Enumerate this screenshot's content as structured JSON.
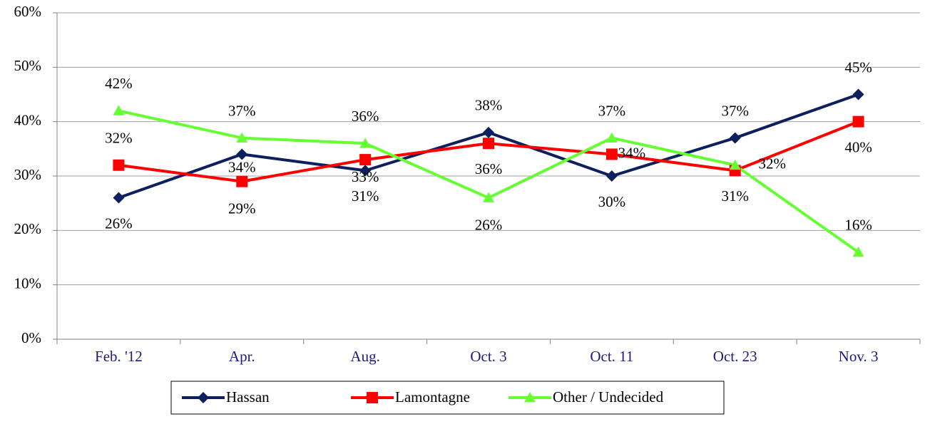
{
  "chart_data": {
    "type": "line",
    "categories": [
      "Feb. '12",
      "Apr.",
      "Aug.",
      "Oct. 3",
      "Oct. 11",
      "Oct. 23",
      "Nov. 3"
    ],
    "series": [
      {
        "name": "Hassan",
        "color": "#0d1f5c",
        "marker": "diamond",
        "values": [
          26,
          34,
          31,
          38,
          30,
          37,
          45
        ],
        "value_labels": [
          "26%",
          "34%",
          "31%",
          "38%",
          "30%",
          "37%",
          "45%"
        ]
      },
      {
        "name": "Lamontagne",
        "color": "#ff0000",
        "marker": "square",
        "values": [
          32,
          29,
          33,
          36,
          34,
          31,
          40
        ],
        "value_labels": [
          "32%",
          "29%",
          "33%",
          "36%",
          "34%",
          "31%",
          "40%"
        ]
      },
      {
        "name": "Other / Undecided",
        "color": "#66ff33",
        "marker": "triangle",
        "values": [
          42,
          37,
          36,
          26,
          37,
          32,
          16
        ],
        "value_labels": [
          "42%",
          "37%",
          "36%",
          "26%",
          "37%",
          "32%",
          "16%"
        ]
      }
    ],
    "ylim": [
      0,
      60
    ],
    "yticks": [
      {
        "value": 0,
        "label": "0%"
      },
      {
        "value": 10,
        "label": "10%"
      },
      {
        "value": 20,
        "label": "20%"
      },
      {
        "value": 30,
        "label": "30%"
      },
      {
        "value": 40,
        "label": "40%"
      },
      {
        "value": 50,
        "label": "50%"
      },
      {
        "value": 60,
        "label": "60%"
      }
    ],
    "grid": true,
    "legend": "bottom"
  }
}
